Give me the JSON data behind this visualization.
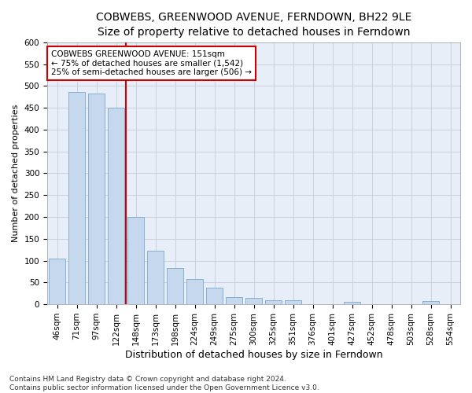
{
  "title": "COBWEBS, GREENWOOD AVENUE, FERNDOWN, BH22 9LE",
  "subtitle": "Size of property relative to detached houses in Ferndown",
  "xlabel": "Distribution of detached houses by size in Ferndown",
  "ylabel": "Number of detached properties",
  "categories": [
    "46sqm",
    "71sqm",
    "97sqm",
    "122sqm",
    "148sqm",
    "173sqm",
    "198sqm",
    "224sqm",
    "249sqm",
    "275sqm",
    "300sqm",
    "325sqm",
    "351sqm",
    "376sqm",
    "401sqm",
    "427sqm",
    "452sqm",
    "478sqm",
    "503sqm",
    "528sqm",
    "554sqm"
  ],
  "values": [
    105,
    487,
    482,
    450,
    200,
    123,
    83,
    57,
    38,
    16,
    15,
    10,
    9,
    0,
    0,
    5,
    0,
    0,
    0,
    7,
    0
  ],
  "bar_color": "#c5d8ed",
  "bar_edge_color": "#7aa8cc",
  "vline_color": "#cc0000",
  "vline_x": 3.5,
  "annotation_text": "COBWEBS GREENWOOD AVENUE: 151sqm\n← 75% of detached houses are smaller (1,542)\n25% of semi-detached houses are larger (506) →",
  "annotation_box_facecolor": "#ffffff",
  "annotation_box_edgecolor": "#cc0000",
  "ylim": [
    0,
    600
  ],
  "yticks": [
    0,
    50,
    100,
    150,
    200,
    250,
    300,
    350,
    400,
    450,
    500,
    550,
    600
  ],
  "plot_bg_color": "#e8eef8",
  "fig_bg_color": "#ffffff",
  "grid_color": "#c8ccd8",
  "footer_text": "Contains HM Land Registry data © Crown copyright and database right 2024.\nContains public sector information licensed under the Open Government Licence v3.0.",
  "title_fontsize": 10,
  "subtitle_fontsize": 9,
  "xlabel_fontsize": 9,
  "ylabel_fontsize": 8,
  "tick_fontsize": 7.5,
  "annotation_fontsize": 7.5,
  "footer_fontsize": 6.5
}
